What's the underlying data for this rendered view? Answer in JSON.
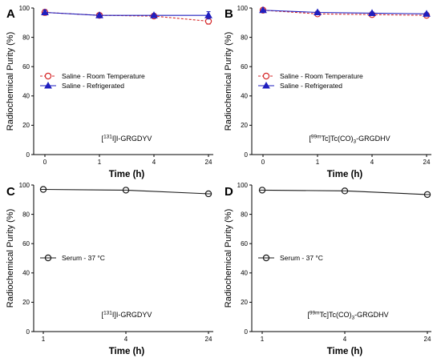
{
  "colors": {
    "room_temperature": "#d62728",
    "refrigerated": "#1f1fbf",
    "serum": "#1a1a1a"
  },
  "chart_data": [
    {
      "panel": "A",
      "type": "line",
      "x_scale": "categorical",
      "categories": [
        "0",
        "1",
        "4",
        "24"
      ],
      "ylabel": "Radiochemical Purity (%)",
      "xlabel": "Time (h)",
      "ylim": [
        0,
        100
      ],
      "yticks": [
        "0",
        "20",
        "40",
        "60",
        "80",
        "100"
      ],
      "compound_label": {
        "pre": "[",
        "sup": "131",
        "post": "I]I-GRGDYV"
      },
      "legend_position": "center-left",
      "series": [
        {
          "name": "Saline - Room Temperature",
          "values": [
            97,
            95,
            94.5,
            91
          ],
          "errors": [
            2,
            1,
            1.5,
            2
          ],
          "marker": "circle-open",
          "line": "dashed",
          "color_key": "room_temperature"
        },
        {
          "name": "Saline - Refrigerated",
          "values": [
            97,
            95,
            95,
            95
          ],
          "errors": [
            1.5,
            1,
            1,
            2.5
          ],
          "marker": "triangle",
          "line": "solid",
          "color_key": "refrigerated"
        }
      ]
    },
    {
      "panel": "B",
      "type": "line",
      "x_scale": "categorical",
      "categories": [
        "0",
        "1",
        "4",
        "24"
      ],
      "ylabel": "Radiochemical Purity (%)",
      "xlabel": "Time (h)",
      "ylim": [
        0,
        100
      ],
      "yticks": [
        "0",
        "20",
        "40",
        "60",
        "80",
        "100"
      ],
      "compound_label": {
        "pre": "[",
        "sup": "99m",
        "post": "Tc]Tc(CO)",
        "sub": "3",
        "post2": "-GRGDHV"
      },
      "legend_position": "center-left",
      "series": [
        {
          "name": "Saline - Room Temperature",
          "values": [
            98.5,
            96,
            95.5,
            95
          ],
          "errors": [
            0.8,
            1,
            0.8,
            1
          ],
          "marker": "circle-open",
          "line": "dashed",
          "color_key": "room_temperature"
        },
        {
          "name": "Saline - Refrigerated",
          "values": [
            98.5,
            97,
            96.5,
            96
          ],
          "errors": [
            0.6,
            0.8,
            0.8,
            0.8
          ],
          "marker": "triangle",
          "line": "solid",
          "color_key": "refrigerated"
        }
      ]
    },
    {
      "panel": "C",
      "type": "line",
      "x_scale": "categorical",
      "categories": [
        "1",
        "4",
        "24"
      ],
      "ylabel": "Radiochemical Purity (%)",
      "xlabel": "Time (h)",
      "ylim": [
        0,
        100
      ],
      "yticks": [
        "0",
        "20",
        "40",
        "60",
        "80",
        "100"
      ],
      "compound_label": {
        "pre": "[",
        "sup": "131",
        "post": "I]I-GRGDYV"
      },
      "legend_position": "center-left",
      "series": [
        {
          "name": "Serum - 37 °C",
          "values": [
            97,
            96.5,
            94
          ],
          "errors": [
            1,
            1,
            1
          ],
          "marker": "circle-cross",
          "line": "solid",
          "color_key": "serum"
        }
      ]
    },
    {
      "panel": "D",
      "type": "line",
      "x_scale": "categorical",
      "categories": [
        "1",
        "4",
        "24"
      ],
      "ylabel": "Radiochemical Purity (%)",
      "xlabel": "Time (h)",
      "ylim": [
        0,
        100
      ],
      "yticks": [
        "0",
        "20",
        "40",
        "60",
        "80",
        "100"
      ],
      "compound_label": {
        "pre": "[",
        "sup": "99m",
        "post": "Tc]Tc(CO)",
        "sub": "3",
        "post2": "-GRGDHV"
      },
      "legend_position": "center-left",
      "series": [
        {
          "name": "Serum - 37 °C",
          "values": [
            96.5,
            96,
            93.5
          ],
          "errors": [
            0.8,
            0.8,
            0.8
          ],
          "marker": "circle-cross",
          "line": "solid",
          "color_key": "serum"
        }
      ]
    }
  ]
}
